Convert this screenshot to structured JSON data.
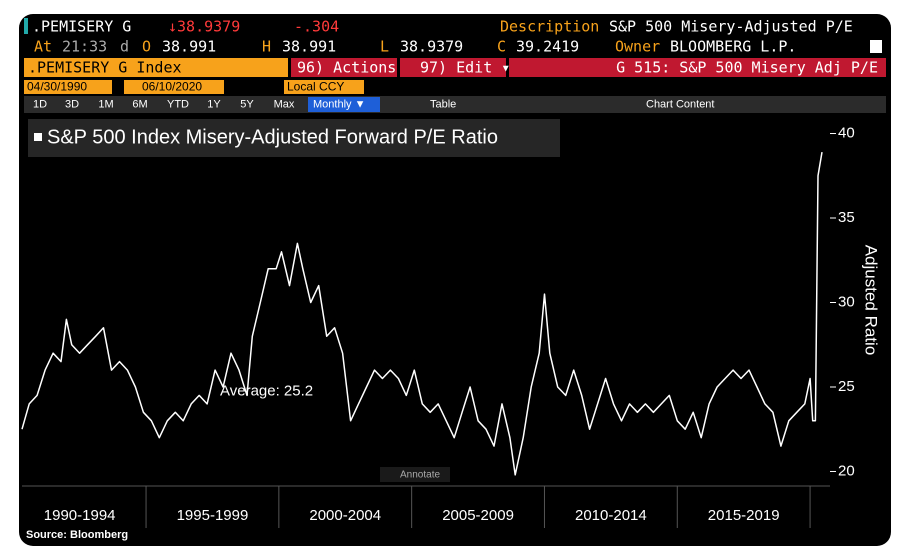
{
  "header": {
    "ticker": ".PEMISERY G",
    "last": "↓38.9379",
    "change": "-.304",
    "description_label": "Description",
    "description": "S&P 500 Misery-Adjusted P/E",
    "at_label": "At",
    "time": "21:33",
    "d": "d",
    "open_label": "O",
    "open": "38.991",
    "high_label": "H",
    "high": "38.991",
    "low_label": "L",
    "low": "38.9379",
    "close_label": "C",
    "close": "39.2419",
    "owner_label": "Owner",
    "owner": "BLOOMBERG L.P."
  },
  "toolbar": {
    "security": ".PEMISERY G Index",
    "actions": "96) Actions ▾",
    "edit": "97) Edit ▾",
    "function": "G 515: S&P 500 Misery Adj P/E",
    "start_date": "04/30/1990",
    "end_date": "06/10/2020",
    "currency": "Local CCY",
    "periods": [
      "1D",
      "3D",
      "1M",
      "6M",
      "YTD",
      "1Y",
      "5Y",
      "Max"
    ],
    "frequency": "Monthly ▼",
    "table": "Table",
    "chart_content": "Chart Content"
  },
  "chart_data": {
    "type": "line",
    "title": "S&P 500 Index Misery-Adjusted Forward P/E Ratio",
    "y_label": "Adjusted Ratio",
    "color": "#ffffff",
    "x": [
      1990.33,
      1990.6,
      1990.9,
      1991.2,
      1991.5,
      1991.8,
      1992.0,
      1992.2,
      1992.5,
      1992.8,
      1993.1,
      1993.4,
      1993.7,
      1994.0,
      1994.3,
      1994.6,
      1994.9,
      1995.2,
      1995.5,
      1995.8,
      1996.1,
      1996.4,
      1996.7,
      1997.0,
      1997.3,
      1997.6,
      1997.9,
      1998.2,
      1998.5,
      1998.8,
      1999.0,
      1999.3,
      1999.6,
      1999.9,
      2000.1,
      2000.4,
      2000.7,
      2000.9,
      2001.2,
      2001.5,
      2001.8,
      2002.1,
      2002.4,
      2002.7,
      2003.0,
      2003.3,
      2003.6,
      2003.9,
      2004.2,
      2004.5,
      2004.8,
      2005.1,
      2005.4,
      2005.7,
      2006.0,
      2006.3,
      2006.6,
      2006.9,
      2007.2,
      2007.5,
      2007.8,
      2008.1,
      2008.4,
      2008.7,
      2008.9,
      2009.2,
      2009.5,
      2009.8,
      2010.0,
      2010.2,
      2010.5,
      2010.8,
      2011.1,
      2011.4,
      2011.7,
      2012.0,
      2012.3,
      2012.6,
      2012.9,
      2013.2,
      2013.5,
      2013.8,
      2014.1,
      2014.4,
      2014.7,
      2015.0,
      2015.3,
      2015.6,
      2015.9,
      2016.2,
      2016.5,
      2016.8,
      2017.1,
      2017.4,
      2017.7,
      2018.0,
      2018.3,
      2018.6,
      2018.9,
      2019.2,
      2019.5,
      2019.8,
      2020.0,
      2020.1,
      2020.2,
      2020.3,
      2020.45
    ],
    "values": [
      22.5,
      24,
      24.5,
      26,
      27,
      26.5,
      29,
      27.5,
      27,
      27.5,
      28,
      28.5,
      26,
      26.5,
      26,
      25,
      23.5,
      23,
      22,
      23,
      23.5,
      23,
      24,
      24.5,
      24,
      26,
      25,
      27,
      26,
      24.5,
      28,
      30,
      32,
      32,
      33,
      31,
      33.5,
      32,
      30,
      31,
      28,
      28.5,
      27,
      23,
      24,
      25,
      26,
      25.5,
      26,
      25.5,
      24.5,
      26,
      24,
      23.5,
      24,
      23,
      22,
      23.5,
      25,
      23,
      22.5,
      21.5,
      24,
      22,
      19.8,
      22,
      25,
      27,
      30.5,
      27,
      25,
      24.5,
      26,
      24.5,
      22.5,
      24,
      25.5,
      24,
      23,
      24,
      23.5,
      24,
      23.5,
      24,
      24.5,
      23,
      22.5,
      23.5,
      22,
      24,
      25,
      25.5,
      26,
      25.5,
      26,
      25,
      24,
      23.5,
      21.5,
      23,
      23.5,
      24,
      25.5,
      23,
      23,
      37.5,
      38.9
    ],
    "xlim": [
      1990.33,
      2020.75
    ],
    "xticks": [
      {
        "value": 1992.5,
        "label": "1990-1994"
      },
      {
        "value": 1997.5,
        "label": "1995-1999"
      },
      {
        "value": 2002.5,
        "label": "2000-2004"
      },
      {
        "value": 2007.5,
        "label": "2005-2009"
      },
      {
        "value": 2012.5,
        "label": "2010-2014"
      },
      {
        "value": 2017.5,
        "label": "2015-2019"
      }
    ],
    "ylim": [
      19.2,
      40.8
    ],
    "yticks": [
      20,
      25,
      30,
      35,
      40
    ],
    "annotations": [
      {
        "text": "Average: 25.2",
        "value": 25.2
      }
    ],
    "annotate_button": "Annotate",
    "source": "Source: Bloomberg"
  }
}
